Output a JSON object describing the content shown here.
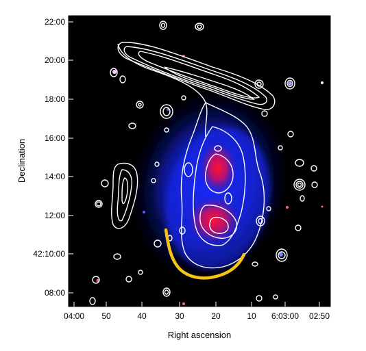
{
  "figure": {
    "xlabel": "Right ascension",
    "ylabel": "Declination",
    "x_ticks": [
      "04:00",
      "50",
      "40",
      "30",
      "20",
      "10",
      "6:03:00",
      "02:50"
    ],
    "y_ticks": [
      "22:00",
      "20:00",
      "18:00",
      "16:00",
      "14:00",
      "12:00",
      "42:10:00",
      "08:00"
    ],
    "colors": {
      "background": "#000000",
      "xray_low": "#1a23ff",
      "xray_high": "#ff1030",
      "contour": "#ffffff",
      "shock_arc": "#f5c21a"
    }
  }
}
